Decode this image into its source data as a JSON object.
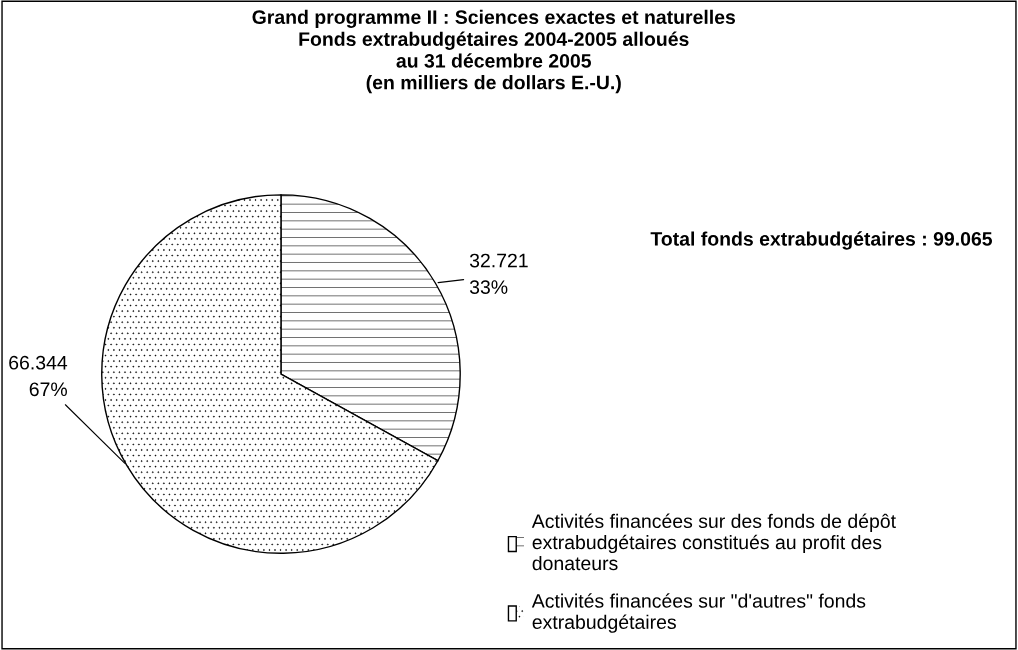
{
  "chart_data": {
    "type": "pie",
    "title": "Grand programme II : Sciences exactes et naturelles\nFonds extrabudgétaires 2004-2005 alloués\nau 31 décembre 2005\n(en milliers de dollars E.-U.)",
    "annotations": [
      "Total fonds extrabudgétaires : 99.065"
    ],
    "categories": [
      "Activités financées sur des fonds de dépôt\nextrabudgétaires constitués au profit des\ndonateurs",
      "Activités financées sur \"d'autres\" fonds\nextrabudgétaires"
    ],
    "values": [
      32.721,
      66.344
    ],
    "value_labels": [
      "32.721\n33%",
      "66.344\n67%"
    ],
    "colors": [
      "#ffffff",
      "#ffffff"
    ],
    "legend": "right"
  }
}
